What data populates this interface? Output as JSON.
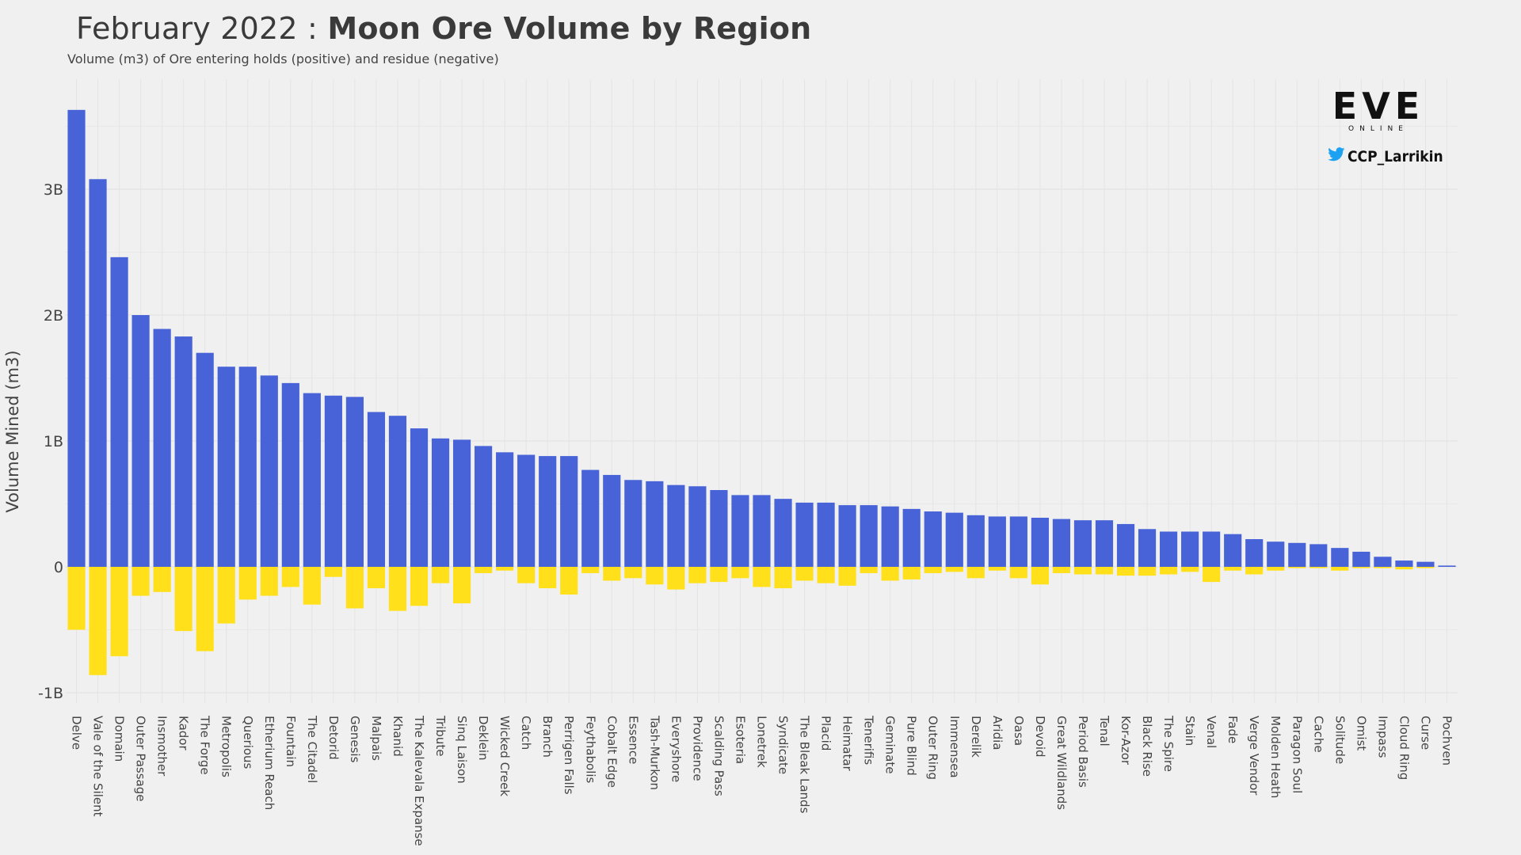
{
  "title": {
    "prefix": "February 2022 : ",
    "main": "Moon Ore Volume by Region"
  },
  "subtitle": "Volume (m3) of Ore entering holds (positive) and residue (negative)",
  "logo": {
    "word": "EVE",
    "sub": "ONLINE"
  },
  "twitter": {
    "icon": "twitter-bird-icon",
    "handle": "CCP_Larrikin"
  },
  "colors": {
    "positive": "#4863d8",
    "negative": "#ffe01b",
    "grid": "#e0e0e0",
    "background": "#f0f0f0"
  },
  "chart_data": {
    "type": "bar",
    "ylabel": "Volume Mined (m3)",
    "xlabel": "",
    "ylim": [
      -1.1,
      3.7
    ],
    "yunit": "billions m3",
    "yticks": [
      -1,
      0,
      1,
      2,
      3
    ],
    "ytick_labels": [
      "-1B",
      "0",
      "1B",
      "2B",
      "3B"
    ],
    "grid": true,
    "categories": [
      "Delve",
      "Vale of the Silent",
      "Domain",
      "Outer Passage",
      "Insmother",
      "Kador",
      "The Forge",
      "Metropolis",
      "Querious",
      "Etherium Reach",
      "Fountain",
      "The Citadel",
      "Detorid",
      "Genesis",
      "Malpais",
      "Khanid",
      "The Kalevala Expanse",
      "Tribute",
      "Sinq Laison",
      "Deklein",
      "Wicked Creek",
      "Catch",
      "Branch",
      "Perrigen Falls",
      "Feythabolis",
      "Cobalt Edge",
      "Essence",
      "Tash-Murkon",
      "Everyshore",
      "Providence",
      "Scalding Pass",
      "Esoteria",
      "Lonetrek",
      "Syndicate",
      "The Bleak Lands",
      "Placid",
      "Heimatar",
      "Tenerifis",
      "Geminate",
      "Pure Blind",
      "Outer Ring",
      "Immensea",
      "Derelik",
      "Aridia",
      "Oasa",
      "Devoid",
      "Great Wildlands",
      "Period Basis",
      "Tenal",
      "Kor-Azor",
      "Black Rise",
      "The Spire",
      "Stain",
      "Venal",
      "Fade",
      "Verge Vendor",
      "Molden Heath",
      "Paragon Soul",
      "Cache",
      "Solitude",
      "Omist",
      "Impass",
      "Cloud Ring",
      "Curse",
      "Pochven"
    ],
    "series": [
      {
        "name": "positive",
        "values": [
          3.63,
          3.08,
          2.46,
          2.0,
          1.89,
          1.83,
          1.7,
          1.59,
          1.59,
          1.52,
          1.46,
          1.38,
          1.36,
          1.35,
          1.23,
          1.2,
          1.1,
          1.02,
          1.01,
          0.96,
          0.91,
          0.89,
          0.88,
          0.88,
          0.77,
          0.73,
          0.69,
          0.68,
          0.65,
          0.64,
          0.61,
          0.57,
          0.57,
          0.54,
          0.51,
          0.51,
          0.49,
          0.49,
          0.48,
          0.46,
          0.44,
          0.43,
          0.41,
          0.4,
          0.4,
          0.39,
          0.38,
          0.37,
          0.37,
          0.34,
          0.3,
          0.28,
          0.28,
          0.28,
          0.26,
          0.22,
          0.2,
          0.19,
          0.18,
          0.15,
          0.12,
          0.08,
          0.05,
          0.04,
          0.01
        ]
      },
      {
        "name": "negative",
        "values": [
          -0.5,
          -0.86,
          -0.71,
          -0.23,
          -0.2,
          -0.51,
          -0.67,
          -0.45,
          -0.26,
          -0.23,
          -0.16,
          -0.3,
          -0.08,
          -0.33,
          -0.17,
          -0.35,
          -0.31,
          -0.13,
          -0.29,
          -0.05,
          -0.03,
          -0.13,
          -0.17,
          -0.22,
          -0.05,
          -0.11,
          -0.09,
          -0.14,
          -0.18,
          -0.13,
          -0.12,
          -0.09,
          -0.16,
          -0.17,
          -0.11,
          -0.13,
          -0.15,
          -0.05,
          -0.11,
          -0.1,
          -0.05,
          -0.04,
          -0.09,
          -0.03,
          -0.09,
          -0.14,
          -0.05,
          -0.06,
          -0.06,
          -0.07,
          -0.07,
          -0.06,
          -0.04,
          -0.12,
          -0.03,
          -0.06,
          -0.03,
          -0.01,
          -0.01,
          -0.03,
          -0.01,
          -0.01,
          -0.02,
          -0.01,
          0.0
        ]
      }
    ]
  }
}
